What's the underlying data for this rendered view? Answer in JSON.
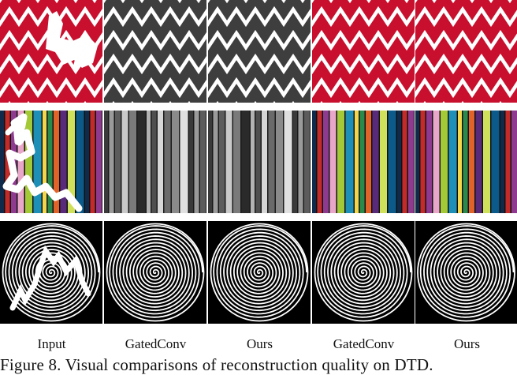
{
  "figure": {
    "column_labels": [
      "Input",
      "GatedConv",
      "Ours",
      "GatedConv",
      "Ours"
    ],
    "caption": "Figure 8. Visual comparisons of reconstruction quality on DTD.",
    "rows": [
      {
        "texture": "zigzag",
        "styles": [
          "red",
          "gray",
          "gray",
          "red",
          "red"
        ]
      },
      {
        "texture": "vertical-stripes",
        "styles": [
          "color",
          "gray",
          "gray",
          "color",
          "color"
        ]
      },
      {
        "texture": "spiral",
        "styles": [
          "bw",
          "bw",
          "bw",
          "bw",
          "bw"
        ]
      }
    ],
    "colors": {
      "zigzag_red": "#c8102e",
      "zigzag_gray": "#3e3e3e",
      "spiral_bg": "#000000",
      "spiral_line": "#ffffff",
      "mask": "#ffffff"
    },
    "stripe_colors": [
      "#0f2a4a",
      "#c32a2a",
      "#8e3a8e",
      "#e8a6c8",
      "#a4c936",
      "#1e8fb6",
      "#f2d74b",
      "#2a8a4c",
      "#e2632a",
      "#5a2a7a",
      "#cfe05a",
      "#0c5a8a"
    ]
  }
}
